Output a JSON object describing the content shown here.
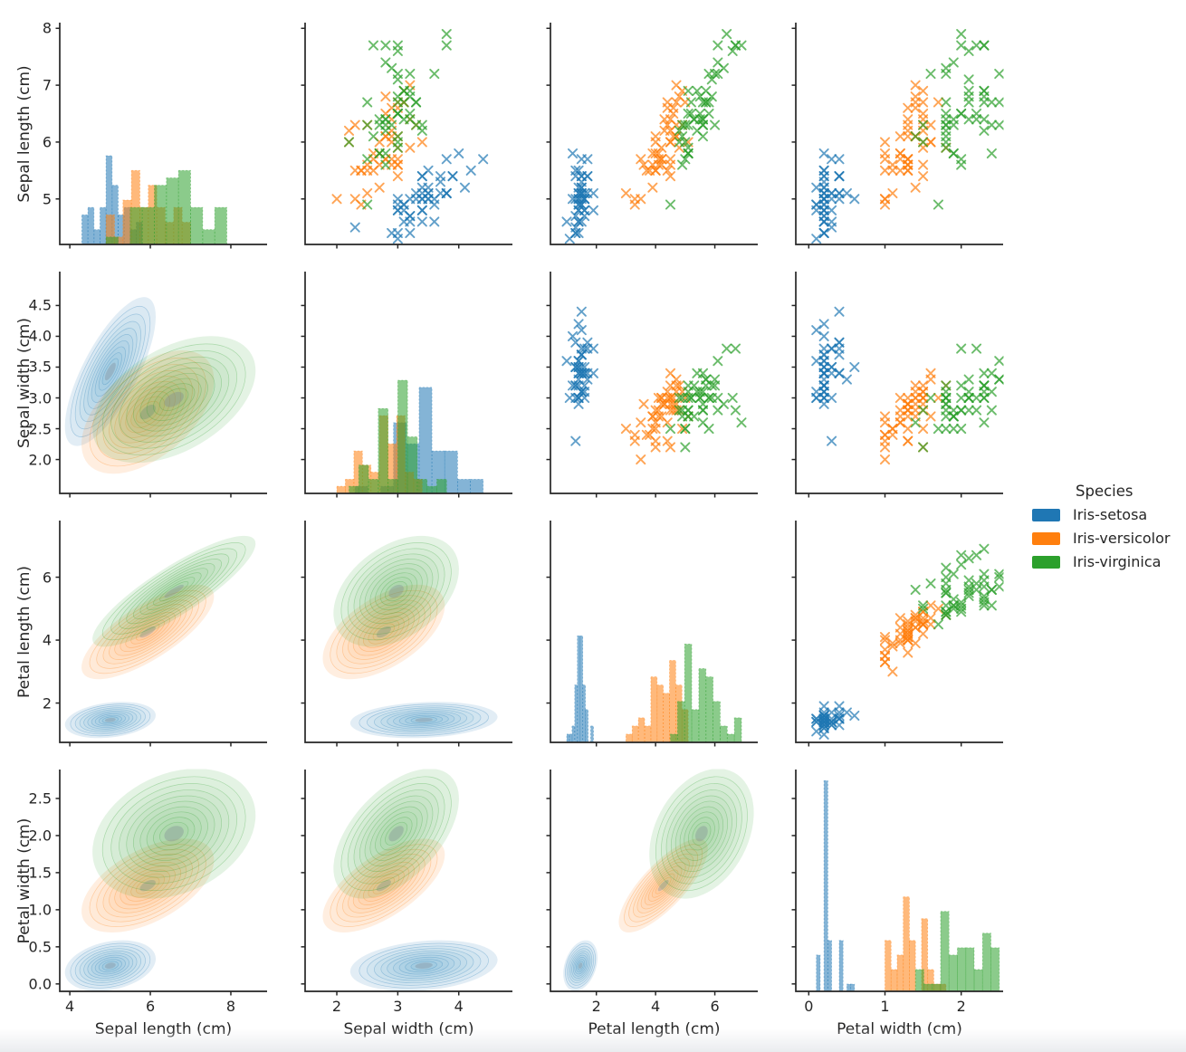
{
  "chart_data": {
    "type": "pairplot",
    "dataset_name": "Iris",
    "variables": [
      "Sepal length (cm)",
      "Sepal width (cm)",
      "Petal length (cm)",
      "Petal width (cm)"
    ],
    "panel_types": {
      "diagonal": "histogram",
      "upper_triangle": "scatter",
      "lower_triangle": "kde_contour"
    },
    "marker": "x",
    "grid": "off",
    "axes": {
      "x_ticks": [
        [
          "4",
          "6",
          "8"
        ],
        [
          "2",
          "3",
          "4"
        ],
        [
          "2",
          "4",
          "6"
        ],
        [
          "0",
          "1",
          "2"
        ]
      ],
      "y_ticks": [
        [
          "5",
          "6",
          "7",
          "8"
        ],
        [
          "2.0",
          "2.5",
          "3.0",
          "3.5",
          "4.0",
          "4.5"
        ],
        [
          "2",
          "4",
          "6"
        ],
        [
          "0.0",
          "0.5",
          "1.0",
          "1.5",
          "2.0",
          "2.5"
        ]
      ],
      "x_ranges": [
        [
          3.75,
          8.9
        ],
        [
          1.48,
          4.88
        ],
        [
          0.45,
          7.45
        ],
        [
          -0.17,
          2.55
        ]
      ],
      "y_ranges": [
        [
          4.2,
          8.1
        ],
        [
          1.45,
          5.05
        ],
        [
          0.75,
          7.8
        ],
        [
          -0.1,
          2.89
        ]
      ]
    },
    "legend": {
      "title": "Species",
      "position": "center-right",
      "entries": [
        {
          "label": "Iris-setosa",
          "color": "#1f77b4"
        },
        {
          "label": "Iris-versicolor",
          "color": "#ff7f0e"
        },
        {
          "label": "Iris-virginica",
          "color": "#2ca02c"
        }
      ]
    },
    "series": [
      {
        "name": "Iris-setosa",
        "color": "#1f77b4",
        "points": [
          [
            5.1,
            3.5,
            1.4,
            0.2
          ],
          [
            4.9,
            3.0,
            1.4,
            0.2
          ],
          [
            4.7,
            3.2,
            1.3,
            0.2
          ],
          [
            4.6,
            3.1,
            1.5,
            0.2
          ],
          [
            5.0,
            3.6,
            1.4,
            0.2
          ],
          [
            5.4,
            3.9,
            1.7,
            0.4
          ],
          [
            4.6,
            3.4,
            1.4,
            0.3
          ],
          [
            5.0,
            3.4,
            1.5,
            0.2
          ],
          [
            4.4,
            2.9,
            1.4,
            0.2
          ],
          [
            4.9,
            3.1,
            1.5,
            0.1
          ],
          [
            5.4,
            3.7,
            1.5,
            0.2
          ],
          [
            4.8,
            3.4,
            1.6,
            0.2
          ],
          [
            4.8,
            3.0,
            1.4,
            0.1
          ],
          [
            4.3,
            3.0,
            1.1,
            0.1
          ],
          [
            5.8,
            4.0,
            1.2,
            0.2
          ],
          [
            5.7,
            4.4,
            1.5,
            0.4
          ],
          [
            5.4,
            3.9,
            1.3,
            0.4
          ],
          [
            5.1,
            3.5,
            1.4,
            0.3
          ],
          [
            5.7,
            3.8,
            1.7,
            0.3
          ],
          [
            5.1,
            3.8,
            1.5,
            0.3
          ],
          [
            5.4,
            3.4,
            1.7,
            0.2
          ],
          [
            5.1,
            3.7,
            1.5,
            0.4
          ],
          [
            4.6,
            3.6,
            1.0,
            0.2
          ],
          [
            5.1,
            3.3,
            1.7,
            0.5
          ],
          [
            4.8,
            3.4,
            1.9,
            0.2
          ],
          [
            5.0,
            3.0,
            1.6,
            0.2
          ],
          [
            5.0,
            3.4,
            1.6,
            0.4
          ],
          [
            5.2,
            3.5,
            1.5,
            0.2
          ],
          [
            5.2,
            3.4,
            1.4,
            0.2
          ],
          [
            4.7,
            3.2,
            1.6,
            0.2
          ],
          [
            4.8,
            3.1,
            1.6,
            0.2
          ],
          [
            5.4,
            3.4,
            1.5,
            0.4
          ],
          [
            5.2,
            4.1,
            1.5,
            0.1
          ],
          [
            5.5,
            4.2,
            1.4,
            0.2
          ],
          [
            4.9,
            3.1,
            1.5,
            0.2
          ],
          [
            5.0,
            3.2,
            1.2,
            0.2
          ],
          [
            5.5,
            3.5,
            1.3,
            0.2
          ],
          [
            4.9,
            3.6,
            1.4,
            0.1
          ],
          [
            4.4,
            3.0,
            1.3,
            0.2
          ],
          [
            5.1,
            3.4,
            1.5,
            0.2
          ],
          [
            5.0,
            3.5,
            1.3,
            0.3
          ],
          [
            4.5,
            2.3,
            1.3,
            0.3
          ],
          [
            4.4,
            3.2,
            1.3,
            0.2
          ],
          [
            5.0,
            3.5,
            1.6,
            0.6
          ],
          [
            5.1,
            3.8,
            1.9,
            0.4
          ],
          [
            4.8,
            3.0,
            1.4,
            0.3
          ],
          [
            5.1,
            3.8,
            1.6,
            0.2
          ],
          [
            4.6,
            3.2,
            1.4,
            0.2
          ],
          [
            5.3,
            3.7,
            1.5,
            0.2
          ],
          [
            5.0,
            3.3,
            1.4,
            0.2
          ]
        ]
      },
      {
        "name": "Iris-versicolor",
        "color": "#ff7f0e",
        "points": [
          [
            7.0,
            3.2,
            4.7,
            1.4
          ],
          [
            6.4,
            3.2,
            4.5,
            1.5
          ],
          [
            6.9,
            3.1,
            4.9,
            1.5
          ],
          [
            5.5,
            2.3,
            4.0,
            1.3
          ],
          [
            6.5,
            2.8,
            4.6,
            1.5
          ],
          [
            5.7,
            2.8,
            4.5,
            1.3
          ],
          [
            6.3,
            3.3,
            4.7,
            1.6
          ],
          [
            4.9,
            2.4,
            3.3,
            1.0
          ],
          [
            6.6,
            2.9,
            4.6,
            1.3
          ],
          [
            5.2,
            2.7,
            3.9,
            1.4
          ],
          [
            5.0,
            2.0,
            3.5,
            1.0
          ],
          [
            5.9,
            3.0,
            4.2,
            1.5
          ],
          [
            6.0,
            2.2,
            4.0,
            1.0
          ],
          [
            6.1,
            2.9,
            4.7,
            1.4
          ],
          [
            5.6,
            2.9,
            3.6,
            1.3
          ],
          [
            6.7,
            3.1,
            4.4,
            1.4
          ],
          [
            5.6,
            3.0,
            4.5,
            1.5
          ],
          [
            5.8,
            2.7,
            4.1,
            1.0
          ],
          [
            6.2,
            2.2,
            4.5,
            1.5
          ],
          [
            5.6,
            2.5,
            3.9,
            1.1
          ],
          [
            5.9,
            3.2,
            4.8,
            1.8
          ],
          [
            6.1,
            2.8,
            4.0,
            1.3
          ],
          [
            6.3,
            2.5,
            4.9,
            1.5
          ],
          [
            6.1,
            2.8,
            4.7,
            1.2
          ],
          [
            6.4,
            2.9,
            4.3,
            1.3
          ],
          [
            6.6,
            3.0,
            4.4,
            1.4
          ],
          [
            6.8,
            2.8,
            4.8,
            1.4
          ],
          [
            6.7,
            3.0,
            5.0,
            1.7
          ],
          [
            6.0,
            2.9,
            4.5,
            1.5
          ],
          [
            5.7,
            2.6,
            3.5,
            1.0
          ],
          [
            5.5,
            2.4,
            3.8,
            1.1
          ],
          [
            5.5,
            2.4,
            3.7,
            1.0
          ],
          [
            5.8,
            2.7,
            3.9,
            1.2
          ],
          [
            6.0,
            2.7,
            5.1,
            1.6
          ],
          [
            5.4,
            3.0,
            4.5,
            1.5
          ],
          [
            6.0,
            3.4,
            4.5,
            1.6
          ],
          [
            6.7,
            3.1,
            4.7,
            1.5
          ],
          [
            6.3,
            2.3,
            4.4,
            1.3
          ],
          [
            5.6,
            3.0,
            4.1,
            1.3
          ],
          [
            5.5,
            2.5,
            4.0,
            1.3
          ],
          [
            5.5,
            2.6,
            4.4,
            1.2
          ],
          [
            6.1,
            3.0,
            4.6,
            1.4
          ],
          [
            5.8,
            2.6,
            4.0,
            1.2
          ],
          [
            5.0,
            2.3,
            3.3,
            1.0
          ],
          [
            5.6,
            2.7,
            4.2,
            1.3
          ],
          [
            5.7,
            3.0,
            4.2,
            1.2
          ],
          [
            5.7,
            2.9,
            4.2,
            1.3
          ],
          [
            6.2,
            2.9,
            4.3,
            1.3
          ],
          [
            5.1,
            2.5,
            3.0,
            1.1
          ],
          [
            5.7,
            2.8,
            4.1,
            1.3
          ]
        ]
      },
      {
        "name": "Iris-virginica",
        "color": "#2ca02c",
        "points": [
          [
            6.3,
            3.3,
            6.0,
            2.5
          ],
          [
            5.8,
            2.7,
            5.1,
            1.9
          ],
          [
            7.1,
            3.0,
            5.9,
            2.1
          ],
          [
            6.3,
            2.9,
            5.6,
            1.8
          ],
          [
            6.5,
            3.0,
            5.8,
            2.2
          ],
          [
            7.6,
            3.0,
            6.6,
            2.1
          ],
          [
            4.9,
            2.5,
            4.5,
            1.7
          ],
          [
            7.3,
            2.9,
            6.3,
            1.8
          ],
          [
            6.7,
            2.5,
            5.8,
            1.8
          ],
          [
            7.2,
            3.6,
            6.1,
            2.5
          ],
          [
            6.5,
            3.2,
            5.1,
            2.0
          ],
          [
            6.4,
            2.7,
            5.3,
            1.9
          ],
          [
            6.8,
            3.0,
            5.5,
            2.1
          ],
          [
            5.7,
            2.5,
            5.0,
            2.0
          ],
          [
            5.8,
            2.8,
            5.1,
            2.4
          ],
          [
            6.4,
            3.2,
            5.3,
            2.3
          ],
          [
            6.5,
            3.0,
            5.5,
            1.8
          ],
          [
            7.7,
            3.8,
            6.7,
            2.2
          ],
          [
            7.7,
            2.6,
            6.9,
            2.3
          ],
          [
            6.0,
            2.2,
            5.0,
            1.5
          ],
          [
            6.9,
            3.2,
            5.7,
            2.3
          ],
          [
            5.6,
            2.8,
            4.9,
            2.0
          ],
          [
            7.7,
            2.8,
            6.7,
            2.0
          ],
          [
            6.3,
            2.7,
            4.9,
            1.8
          ],
          [
            6.7,
            3.3,
            5.7,
            2.1
          ],
          [
            7.2,
            3.2,
            6.0,
            1.8
          ],
          [
            6.2,
            2.8,
            4.8,
            1.8
          ],
          [
            6.1,
            3.0,
            4.9,
            1.8
          ],
          [
            6.4,
            2.8,
            5.6,
            2.1
          ],
          [
            7.2,
            3.0,
            5.8,
            1.6
          ],
          [
            7.4,
            2.8,
            6.1,
            1.9
          ],
          [
            7.9,
            3.8,
            6.4,
            2.0
          ],
          [
            6.4,
            2.8,
            5.6,
            2.2
          ],
          [
            6.3,
            2.8,
            5.1,
            1.5
          ],
          [
            6.1,
            2.6,
            5.6,
            1.4
          ],
          [
            7.7,
            3.0,
            6.1,
            2.3
          ],
          [
            6.3,
            3.4,
            5.6,
            2.4
          ],
          [
            6.4,
            3.1,
            5.5,
            1.8
          ],
          [
            6.0,
            3.0,
            4.8,
            1.8
          ],
          [
            6.9,
            3.1,
            5.4,
            2.1
          ],
          [
            6.7,
            3.1,
            5.6,
            2.4
          ],
          [
            6.9,
            3.1,
            5.1,
            2.3
          ],
          [
            5.8,
            2.7,
            5.1,
            1.9
          ],
          [
            6.8,
            3.2,
            5.9,
            2.3
          ],
          [
            6.7,
            3.3,
            5.7,
            2.5
          ],
          [
            6.7,
            3.0,
            5.2,
            2.3
          ],
          [
            6.3,
            2.5,
            5.0,
            1.9
          ],
          [
            6.5,
            3.0,
            5.2,
            2.0
          ],
          [
            6.2,
            3.4,
            5.4,
            2.3
          ],
          [
            5.9,
            3.0,
            5.1,
            1.8
          ]
        ]
      }
    ]
  }
}
